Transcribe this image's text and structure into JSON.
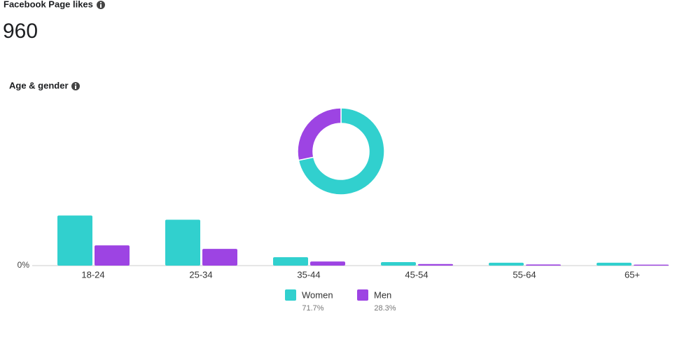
{
  "header": {
    "title": "Facebook Page likes",
    "value": "960"
  },
  "section": {
    "title": "Age & gender"
  },
  "chart_data": [
    {
      "type": "donut",
      "values": [
        71.7,
        28.3
      ],
      "value_labels": [
        "71.7%",
        "28.3%"
      ],
      "colors": [
        "#31d0ce",
        "#9d44e3"
      ]
    },
    {
      "type": "bar",
      "categories": [
        "18-24",
        "25-34",
        "35-44",
        "45-54",
        "55-64",
        "65+"
      ],
      "series": [
        {
          "name": "Women",
          "color": "#31d0ce",
          "values": [
            31.7,
            29.0,
            5.3,
            2.2,
            1.8,
            1.8
          ]
        },
        {
          "name": "Men",
          "color": "#9d44e3",
          "values": [
            12.8,
            10.6,
            2.6,
            1.0,
            0.7,
            0.6
          ]
        }
      ],
      "ylim": [
        0,
        35
      ],
      "yticks": [
        {
          "value": 0,
          "label": "0%"
        }
      ]
    }
  ]
}
